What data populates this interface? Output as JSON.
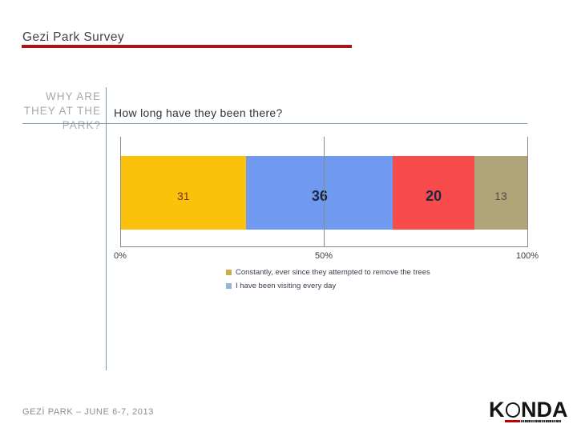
{
  "header": {
    "title": "Gezi Park Survey"
  },
  "sidebar": {
    "section_label": "WHY ARE THEY AT THE PARK?"
  },
  "footer": {
    "caption": "GEZİ PARK – JUNE 6-7, 2013"
  },
  "logo": {
    "name": "KONDA",
    "left": "K",
    "o": "O",
    "right": "NDA"
  },
  "colors": {
    "accent_red": "#a81616",
    "divider_blue": "#7b97ae",
    "grid_gray": "#8a8a8a",
    "section_label_gray": "#a8a8a8",
    "footer_gray": "#8c8c8c",
    "logo_red": "#c00000",
    "logo_black": "#141414"
  },
  "chart_data": {
    "type": "bar",
    "orientation": "horizontal",
    "stacked": true,
    "title": "How long have they been there?",
    "xlabel": "",
    "ylabel": "",
    "xlim": [
      0,
      100
    ],
    "grid": true,
    "legend_position": "bottom",
    "x_ticks": [
      {
        "value": 0,
        "label": "0%"
      },
      {
        "value": 50,
        "label": "50%"
      },
      {
        "value": 100,
        "label": "100%"
      }
    ],
    "segments": [
      {
        "value": 31,
        "color": "#fcc10b",
        "text_color": "#7e2f1e",
        "emphasis": false
      },
      {
        "value": 36,
        "color": "#6f9af0",
        "text_color": "#1c2742",
        "emphasis": true
      },
      {
        "value": 20,
        "color": "#f84c4c",
        "text_color": "#1c2742",
        "emphasis": true
      },
      {
        "value": 13,
        "color": "#b1a478",
        "text_color": "#4c4c4c",
        "emphasis": false
      }
    ],
    "legend": [
      {
        "label": "Constantly, ever since they attempted to remove the trees",
        "color": "#c9ae4b"
      },
      {
        "label": "I have been visiting every day",
        "color": "#95b3d7"
      }
    ]
  }
}
